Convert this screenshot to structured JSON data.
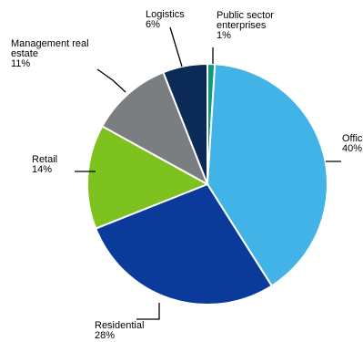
{
  "chart_data": {
    "type": "pie",
    "title": "",
    "start_angle_deg": 0,
    "direction": "clockwise",
    "legend": "none",
    "slices": [
      {
        "name": "Public sector enterprises",
        "label_lines": [
          "Public sector",
          "enterprises"
        ],
        "value": 1,
        "value_label": "1%",
        "color": "#0f9a82"
      },
      {
        "name": "Office",
        "label_lines": [
          "Office"
        ],
        "value": 40,
        "value_label": "40%",
        "color": "#41b3e6"
      },
      {
        "name": "Residential",
        "label_lines": [
          "Residential"
        ],
        "value": 28,
        "value_label": "28%",
        "color": "#0a3a9a"
      },
      {
        "name": "Retail",
        "label_lines": [
          "Retail"
        ],
        "value": 14,
        "value_label": "14%",
        "color": "#7dc21f"
      },
      {
        "name": "Management real estate",
        "label_lines": [
          "Management real",
          "estate"
        ],
        "value": 11,
        "value_label": "11%",
        "color": "#7b7e81"
      },
      {
        "name": "Logistics",
        "label_lines": [
          "Logistics"
        ],
        "value": 6,
        "value_label": "6%",
        "color": "#0b2a57"
      }
    ]
  }
}
